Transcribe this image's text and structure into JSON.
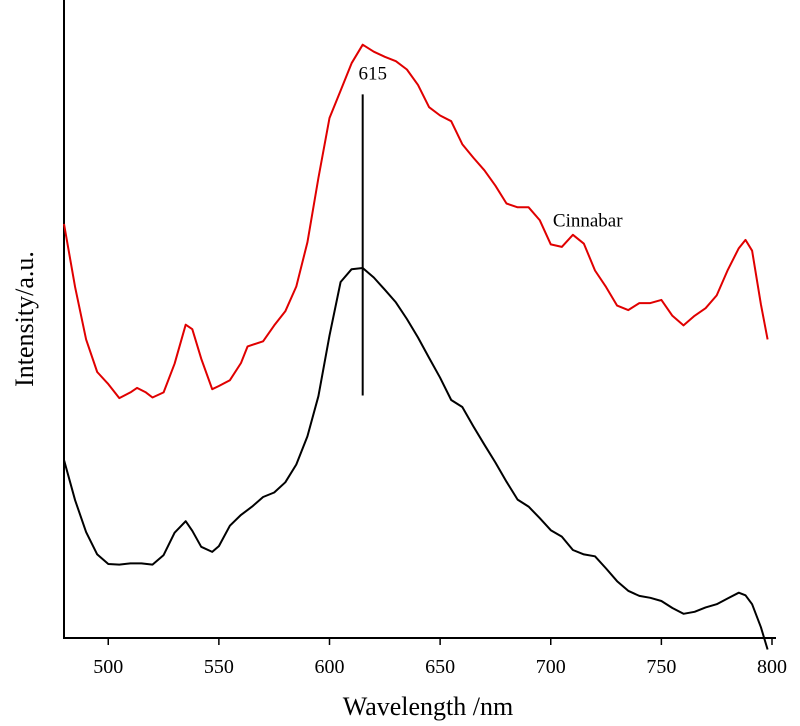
{
  "chart_data": {
    "type": "line",
    "title": "",
    "xlabel": "Wavelength /nm",
    "ylabel": "Intensity/a.u.",
    "xlim": [
      480,
      800
    ],
    "ylim": [
      0,
      1
    ],
    "x_ticks": [
      500,
      550,
      600,
      650,
      700,
      750,
      800
    ],
    "grid": false,
    "legend": "none",
    "series": [
      {
        "name": "Cinnabar",
        "color": "#e00000",
        "points": [
          [
            480,
            0.649
          ],
          [
            485,
            0.55
          ],
          [
            490,
            0.468
          ],
          [
            495,
            0.417
          ],
          [
            500,
            0.398
          ],
          [
            505,
            0.376
          ],
          [
            510,
            0.385
          ],
          [
            513,
            0.392
          ],
          [
            517,
            0.385
          ],
          [
            520,
            0.377
          ],
          [
            525,
            0.385
          ],
          [
            530,
            0.43
          ],
          [
            535,
            0.491
          ],
          [
            538,
            0.484
          ],
          [
            542,
            0.438
          ],
          [
            547,
            0.39
          ],
          [
            550,
            0.395
          ],
          [
            555,
            0.404
          ],
          [
            560,
            0.431
          ],
          [
            563,
            0.457
          ],
          [
            570,
            0.465
          ],
          [
            575,
            0.49
          ],
          [
            580,
            0.512
          ],
          [
            585,
            0.551
          ],
          [
            590,
            0.62
          ],
          [
            595,
            0.721
          ],
          [
            600,
            0.815
          ],
          [
            605,
            0.858
          ],
          [
            610,
            0.901
          ],
          [
            615,
            0.93
          ],
          [
            620,
            0.919
          ],
          [
            625,
            0.911
          ],
          [
            630,
            0.904
          ],
          [
            635,
            0.891
          ],
          [
            640,
            0.867
          ],
          [
            645,
            0.832
          ],
          [
            650,
            0.819
          ],
          [
            655,
            0.81
          ],
          [
            660,
            0.774
          ],
          [
            665,
            0.753
          ],
          [
            670,
            0.733
          ],
          [
            675,
            0.709
          ],
          [
            680,
            0.681
          ],
          [
            685,
            0.675
          ],
          [
            690,
            0.675
          ],
          [
            695,
            0.655
          ],
          [
            700,
            0.617
          ],
          [
            705,
            0.613
          ],
          [
            710,
            0.632
          ],
          [
            715,
            0.618
          ],
          [
            720,
            0.576
          ],
          [
            725,
            0.55
          ],
          [
            730,
            0.521
          ],
          [
            735,
            0.514
          ],
          [
            740,
            0.525
          ],
          [
            745,
            0.525
          ],
          [
            750,
            0.53
          ],
          [
            755,
            0.505
          ],
          [
            760,
            0.49
          ],
          [
            765,
            0.505
          ],
          [
            770,
            0.517
          ],
          [
            775,
            0.537
          ],
          [
            780,
            0.577
          ],
          [
            785,
            0.611
          ],
          [
            788,
            0.624
          ],
          [
            791,
            0.607
          ],
          [
            795,
            0.523
          ],
          [
            798,
            0.468
          ]
        ]
      },
      {
        "name": "",
        "color": "#000000",
        "points": [
          [
            480,
            0.279
          ],
          [
            485,
            0.216
          ],
          [
            490,
            0.166
          ],
          [
            495,
            0.131
          ],
          [
            500,
            0.116
          ],
          [
            505,
            0.115
          ],
          [
            510,
            0.117
          ],
          [
            515,
            0.117
          ],
          [
            520,
            0.115
          ],
          [
            525,
            0.13
          ],
          [
            530,
            0.165
          ],
          [
            535,
            0.183
          ],
          [
            538,
            0.168
          ],
          [
            542,
            0.143
          ],
          [
            547,
            0.135
          ],
          [
            550,
            0.144
          ],
          [
            555,
            0.176
          ],
          [
            560,
            0.193
          ],
          [
            565,
            0.206
          ],
          [
            570,
            0.221
          ],
          [
            575,
            0.228
          ],
          [
            580,
            0.244
          ],
          [
            585,
            0.272
          ],
          [
            590,
            0.316
          ],
          [
            595,
            0.379
          ],
          [
            600,
            0.474
          ],
          [
            605,
            0.558
          ],
          [
            610,
            0.578
          ],
          [
            615,
            0.58
          ],
          [
            620,
            0.565
          ],
          [
            625,
            0.546
          ],
          [
            630,
            0.526
          ],
          [
            635,
            0.5
          ],
          [
            640,
            0.471
          ],
          [
            645,
            0.439
          ],
          [
            650,
            0.408
          ],
          [
            655,
            0.373
          ],
          [
            660,
            0.362
          ],
          [
            665,
            0.332
          ],
          [
            670,
            0.303
          ],
          [
            675,
            0.275
          ],
          [
            680,
            0.245
          ],
          [
            685,
            0.217
          ],
          [
            690,
            0.206
          ],
          [
            695,
            0.188
          ],
          [
            700,
            0.169
          ],
          [
            705,
            0.159
          ],
          [
            710,
            0.138
          ],
          [
            715,
            0.131
          ],
          [
            720,
            0.128
          ],
          [
            725,
            0.109
          ],
          [
            730,
            0.089
          ],
          [
            735,
            0.074
          ],
          [
            740,
            0.066
          ],
          [
            745,
            0.063
          ],
          [
            750,
            0.058
          ],
          [
            755,
            0.047
          ],
          [
            760,
            0.038
          ],
          [
            765,
            0.041
          ],
          [
            770,
            0.048
          ],
          [
            775,
            0.053
          ],
          [
            780,
            0.062
          ],
          [
            785,
            0.071
          ],
          [
            788,
            0.067
          ],
          [
            791,
            0.053
          ],
          [
            795,
            0.017
          ],
          [
            798,
            -0.018
          ]
        ]
      }
    ],
    "annotations": [
      {
        "text": "615",
        "x": 615,
        "y_range": [
          0.38,
          1.0
        ]
      },
      {
        "text": "Cinnabar",
        "x": 747,
        "y": 0.645
      }
    ]
  }
}
